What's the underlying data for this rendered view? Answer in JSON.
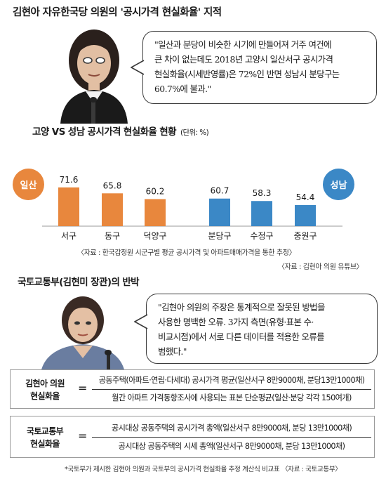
{
  "title": "김현아 자유한국당 의원의 '공시가격 현실화율' 지적",
  "quote1": {
    "lines": [
      "\"일산과 분당이 비슷한 시기에 만들어져 거주 여건에",
      "큰 차이 없는데도 2018년 고양시 일산서구 공시가격",
      "현실화율(시세반영률)은 72%인 반면 성남시 분당구는",
      "60.7%에 불과.\""
    ]
  },
  "chart_data": {
    "type": "bar",
    "title": "고양 VS 성남 공시가격 현실화율 현황",
    "unit_label": "(단위: %)",
    "categories": [
      "서구",
      "동구",
      "덕양구",
      "분당구",
      "수정구",
      "중원구"
    ],
    "values": [
      71.6,
      65.8,
      60.2,
      60.7,
      58.3,
      54.4
    ],
    "value_labels": [
      "71.6",
      "65.8",
      "60.2",
      "60.7",
      "58.3",
      "54.4"
    ],
    "groups": [
      {
        "name": "일산",
        "color": "#E8873D",
        "indices": [
          0,
          1,
          2
        ]
      },
      {
        "name": "성남",
        "color": "#3B88C6",
        "indices": [
          3,
          4,
          5
        ]
      }
    ],
    "source": "〈자료 : 한국감정원 시군구별 평균 공시가격 및 아파트매매가격을 통한 추정〉",
    "grid": false,
    "legend": "none"
  },
  "source_note": "〈자료 : 김현아 의원 유튜브〉",
  "section2_title": "국토교통부(김현미 장관)의 반박",
  "quote2": {
    "lines": [
      "\"김현아 의원의 주장은 통계적으로 잘못된 방법을",
      "사용한 명백한 오류. 3가지 측면(유형·표본 수·",
      "비교시점)에서 서로 다른 데이터를 적용한 오류를",
      "범했다.\""
    ]
  },
  "formula1": {
    "label_line1": "김현아 의원",
    "label_line2": "현실화율",
    "equals": "=",
    "numerator": "공동주택(아파트·연립·다세대) 공시가격 평균(일산서구 8만9000채, 분당13만1000채)",
    "denominator": "월간 아파트 가격동향조사에 사용되는 표본 단순평균(일산·분당 각각 150여개)"
  },
  "formula2": {
    "label_line1": "국토교통부",
    "label_line2": "현실화율",
    "equals": "=",
    "numerator": "공시대상 공동주택의 공시가격 총액(일산서구 8만9000채, 분당 13만1000채)",
    "denominator": "공시대상 공동주택의 시세 총액(일산서구 8만9000채, 분당 13만1000채)"
  },
  "footnote": "*국토부가 제시한 김현아 의원과 국토부의 공시가격 현실화율 추정 계산식 비교표  〈자료 : 국토교통부〉",
  "colors": {
    "ilsan_orange": "#E8873D",
    "seongnam_blue": "#3B88C6"
  }
}
